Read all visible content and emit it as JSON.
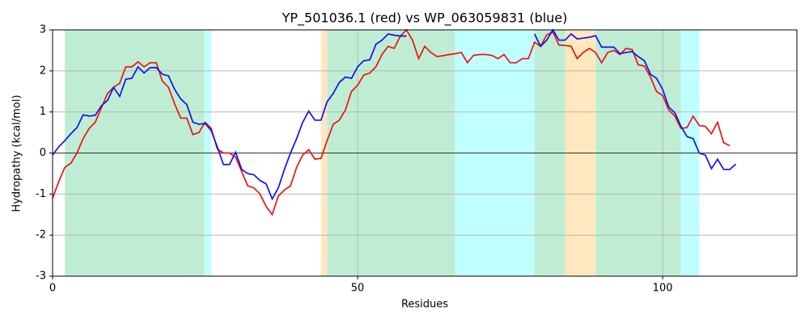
{
  "chart_data": {
    "type": "line",
    "title": "YP_501036.1 (red) vs WP_063059831 (blue)",
    "xlabel": "Residues",
    "ylabel": "Hydropathy (kcal/mol)",
    "xlim": [
      0,
      122
    ],
    "ylim": [
      -3,
      3
    ],
    "xticks": [
      0,
      50,
      100
    ],
    "yticks": [
      -3,
      -2,
      -1,
      0,
      1,
      2,
      3
    ],
    "grid": true,
    "reference_line": 0,
    "spans": [
      {
        "start": 2,
        "end": 24.9,
        "color": "#bfedd3"
      },
      {
        "start": 24.9,
        "end": 26,
        "color": "#c0ffff"
      },
      {
        "start": 44,
        "end": 45,
        "color": "#ffe8c0"
      },
      {
        "start": 45,
        "end": 66,
        "color": "#bfedd3"
      },
      {
        "start": 66,
        "end": 79,
        "color": "#c0ffff"
      },
      {
        "start": 79,
        "end": 84,
        "color": "#bfedd3"
      },
      {
        "start": 84,
        "end": 89,
        "color": "#ffe8c0"
      },
      {
        "start": 89,
        "end": 103,
        "color": "#bfedd3"
      },
      {
        "start": 103,
        "end": 106,
        "color": "#c0ffff"
      }
    ],
    "x": [
      0,
      1,
      2,
      3,
      4,
      5,
      6,
      7,
      8,
      9,
      10,
      11,
      12,
      13,
      14,
      15,
      16,
      17,
      18,
      19,
      20,
      21,
      22,
      23,
      24,
      25,
      26,
      27,
      28,
      29,
      30,
      31,
      32,
      33,
      34,
      35,
      36,
      37,
      38,
      39,
      40,
      41,
      42,
      43,
      44,
      45,
      46,
      47,
      48,
      49,
      50,
      51,
      52,
      53,
      54,
      55,
      56,
      57,
      58,
      59,
      60,
      61,
      62,
      63,
      64,
      65,
      66,
      67,
      68,
      69,
      70,
      71,
      72,
      73,
      74,
      75,
      76,
      77,
      78,
      79,
      80,
      81,
      82,
      83,
      84,
      85,
      86,
      87,
      88,
      89,
      90,
      91,
      92,
      93,
      94,
      95,
      96,
      97,
      98,
      99,
      100,
      101,
      102,
      103,
      104,
      105,
      106,
      107,
      108,
      109,
      110,
      111,
      112
    ],
    "series": [
      {
        "color": "#ee1111",
        "values": [
          -1.1,
          -0.7,
          -0.35,
          -0.25,
          0.0,
          0.35,
          0.6,
          0.75,
          1.1,
          1.45,
          1.6,
          1.7,
          2.1,
          2.1,
          2.22,
          2.1,
          2.2,
          2.2,
          1.75,
          1.6,
          1.2,
          0.85,
          0.85,
          0.45,
          0.5,
          0.75,
          0.6,
          0.1,
          0.0,
          0.0,
          -0.1,
          -0.45,
          -0.8,
          -0.85,
          -1.0,
          -1.3,
          -1.5,
          -1.05,
          -0.9,
          -0.8,
          -0.35,
          -0.05,
          0.08,
          -0.15,
          -0.13,
          0.3,
          0.7,
          0.8,
          1.05,
          1.5,
          1.65,
          1.9,
          1.95,
          2.1,
          2.4,
          2.6,
          2.55,
          2.85,
          3.0,
          2.75,
          2.3,
          2.6,
          2.45,
          2.35,
          2.37,
          2.4,
          2.42,
          2.45,
          2.2,
          2.38,
          2.4,
          2.4,
          2.38,
          2.3,
          2.4,
          2.2,
          2.2,
          2.3,
          2.3,
          2.7,
          2.6,
          2.88,
          2.95,
          2.63,
          2.62,
          2.6,
          2.3,
          2.45,
          2.55,
          2.45,
          2.2,
          2.45,
          2.5,
          2.4,
          2.55,
          2.52,
          2.15,
          2.12,
          1.85,
          1.5,
          1.4,
          1.05,
          0.9,
          0.6,
          0.62,
          0.9,
          0.67,
          0.65,
          0.47,
          0.75,
          0.25,
          0.18,
          null
        ]
      },
      {
        "color": "#1111ee",
        "values": [
          -0.05,
          0.15,
          0.3,
          0.47,
          0.62,
          0.93,
          0.9,
          0.92,
          1.15,
          1.28,
          1.6,
          1.38,
          1.8,
          1.82,
          2.1,
          1.95,
          2.08,
          2.08,
          1.92,
          1.88,
          1.55,
          1.32,
          1.18,
          0.75,
          0.7,
          0.72,
          0.55,
          0.15,
          -0.28,
          -0.28,
          0.02,
          -0.4,
          -0.5,
          -0.53,
          -0.67,
          -0.75,
          -1.12,
          -0.85,
          -0.4,
          0.0,
          0.35,
          0.75,
          1.02,
          0.8,
          0.8,
          1.25,
          1.45,
          1.72,
          1.85,
          1.82,
          2.1,
          2.25,
          2.27,
          2.65,
          2.75,
          2.9,
          2.87,
          2.85,
          2.85,
          null,
          null,
          null,
          null,
          null,
          null,
          null,
          null,
          null,
          null,
          null,
          null,
          null,
          null,
          null,
          null,
          null,
          null,
          null,
          null,
          2.9,
          2.6,
          2.75,
          3.0,
          2.75,
          2.75,
          2.9,
          2.78,
          2.8,
          2.82,
          2.86,
          2.58,
          2.58,
          2.58,
          2.42,
          2.45,
          2.47,
          2.35,
          2.25,
          1.92,
          1.82,
          1.55,
          1.12,
          0.98,
          0.65,
          0.4,
          0.35,
          0.0,
          -0.05,
          -0.38,
          -0.15,
          -0.4,
          -0.4,
          -0.27
        ]
      }
    ]
  }
}
